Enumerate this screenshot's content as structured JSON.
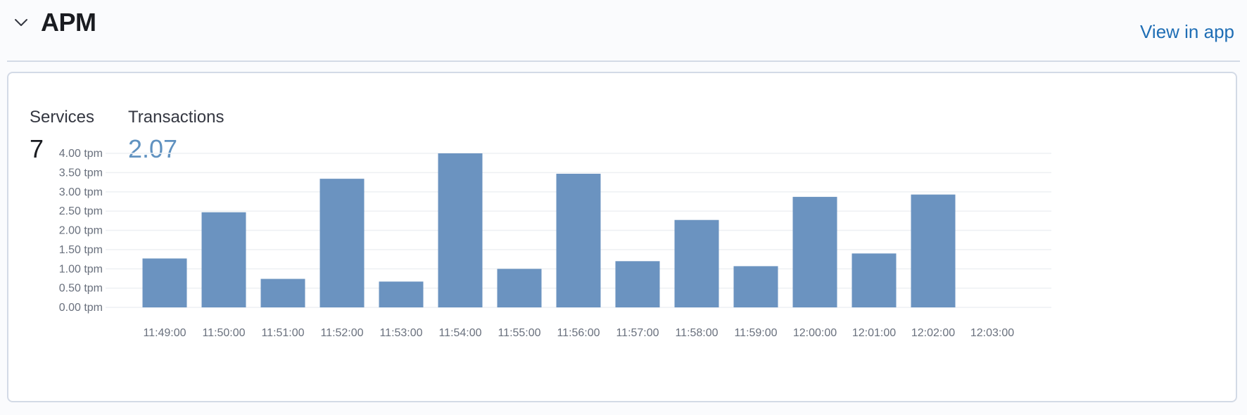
{
  "section": {
    "title": "APM",
    "view_link": "View in app"
  },
  "stats": {
    "services_label": "Services",
    "services_value": "7",
    "transactions_label": "Transactions",
    "transactions_value": "2.07"
  },
  "colors": {
    "bar": "#6b93c0",
    "link": "#1f6eb5",
    "transactions_value": "#6092c0",
    "gridline": "#eef0f3"
  },
  "chart_data": {
    "type": "bar",
    "categories": [
      "11:49:00",
      "11:50:00",
      "11:51:00",
      "11:52:00",
      "11:53:00",
      "11:54:00",
      "11:55:00",
      "11:56:00",
      "11:57:00",
      "11:58:00",
      "11:59:00",
      "12:00:00",
      "12:01:00",
      "12:02:00",
      "12:03:00"
    ],
    "values": [
      1.27,
      2.47,
      0.74,
      3.34,
      0.67,
      4.0,
      1.0,
      3.47,
      1.2,
      2.27,
      1.07,
      2.87,
      1.4,
      2.93,
      null
    ],
    "y_ticks": [
      "0.00 tpm",
      "0.50 tpm",
      "1.00 tpm",
      "1.50 tpm",
      "2.00 tpm",
      "2.50 tpm",
      "3.00 tpm",
      "3.50 tpm",
      "4.00 tpm"
    ],
    "y_tick_values": [
      0,
      0.5,
      1.0,
      1.5,
      2.0,
      2.5,
      3.0,
      3.5,
      4.0
    ],
    "ylim": [
      0,
      4
    ],
    "title": "",
    "xlabel": "",
    "ylabel": "",
    "grid": true
  }
}
